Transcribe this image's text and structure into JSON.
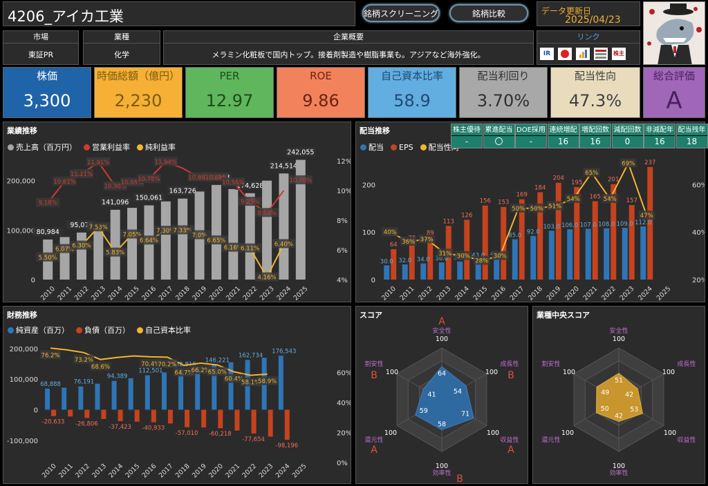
{
  "header": {
    "title": "4206_アイカ工業",
    "btn_screening": "銘柄スクリーニング",
    "btn_compare": "銘柄比較",
    "update_label": "データ更新日",
    "update_date": "2025/04/23"
  },
  "info": {
    "market_h": "市場",
    "market_v": "東証PR",
    "industry_h": "業種",
    "industry_v": "化学",
    "summary_h": "企業概要",
    "summary_v": "メラミン化粧板で国内トップ。接着剤製造や樹脂事業も。アジアなど海外強化。",
    "link_h": "リンク",
    "link_icons": [
      "ir-icon",
      "nikkei-icon",
      "chart-icon",
      "kabutan-icon",
      "shikiho-icon"
    ],
    "link_labels": [
      "IR",
      "",
      "",
      "",
      "株主"
    ]
  },
  "kpis": [
    {
      "label": "株価",
      "value": "3,300",
      "bg": "#1f63a8",
      "head": "#1f63a8",
      "fg": "#ffffff"
    },
    {
      "label": "時価総額（億円）",
      "value": "2,230",
      "bg": "#f5b035",
      "head": "#f5b035",
      "fg": "#7a5a10"
    },
    {
      "label": "PER",
      "value": "12.97",
      "bg": "#5fb65c",
      "head": "#5fb65c",
      "fg": "#1e4a1c"
    },
    {
      "label": "ROE",
      "value": "9.86",
      "bg": "#f2825c",
      "head": "#f2825c",
      "fg": "#6a2210"
    },
    {
      "label": "自己資本比率",
      "value": "58.9",
      "bg": "#62aee0",
      "head": "#62aee0",
      "fg": "#1e4a70"
    },
    {
      "label": "配当利回り",
      "value": "3.70%",
      "bg": "#a8a8a8",
      "head": "#a8a8a8",
      "fg": "#303030"
    },
    {
      "label": "配当性向",
      "value": "47.3%",
      "bg": "#e8dcbc",
      "head": "#e8dcbc",
      "fg": "#404040"
    },
    {
      "label": "総合評価",
      "value": "A",
      "bg": "#a066b8",
      "head": "#a066b8",
      "fg": "#4a2060"
    }
  ],
  "performance": {
    "title": "業績推移",
    "legend": [
      {
        "label": "売上高（百万円）",
        "color": "#a6a6a6"
      },
      {
        "label": "営業利益率",
        "color": "#d23a2e"
      },
      {
        "label": "純利益率",
        "color": "#f5b52e"
      }
    ]
  },
  "dividend": {
    "title": "配当推移",
    "legend": [
      {
        "label": "配当",
        "color": "#2e75b6"
      },
      {
        "label": "EPS",
        "color": "#c5431e"
      },
      {
        "label": "配当性向",
        "color": "#f5b52e"
      }
    ],
    "stats": [
      {
        "h": "株主優待",
        "v": "-"
      },
      {
        "h": "累進配当",
        "v": "〇"
      },
      {
        "h": "DOE採用",
        "v": "-"
      },
      {
        "h": "連続増配",
        "v": "16"
      },
      {
        "h": "増配回数",
        "v": "16"
      },
      {
        "h": "減配回数",
        "v": "0"
      },
      {
        "h": "非減配年",
        "v": "16"
      },
      {
        "h": "配当残年",
        "v": "18"
      }
    ]
  },
  "finance": {
    "title": "財務推移",
    "legend": [
      {
        "label": "純資産（百万）",
        "color": "#2e75b6"
      },
      {
        "label": "負債（百万）",
        "color": "#c5431e"
      },
      {
        "label": "自己資本比率",
        "color": "#f5b52e"
      }
    ]
  },
  "score": {
    "title": "スコア",
    "center_title": "業種中央スコア",
    "axes": [
      "安全性",
      "成長性",
      "収益性",
      "効率性",
      "還元性",
      "割安性"
    ],
    "max_label": "100",
    "values": [
      64,
      54,
      71,
      58,
      59,
      41
    ],
    "grades": [
      "A",
      "B",
      "A",
      "B",
      "A",
      "B"
    ],
    "median_values": [
      51,
      42,
      53,
      42,
      50,
      49
    ]
  },
  "chart_data": [
    {
      "type": "bar",
      "title": "業績推移",
      "categories": [
        "2010",
        "2011",
        "2012",
        "2013",
        "2014",
        "2015",
        "2016",
        "2017",
        "2018",
        "2019",
        "2020",
        "2021",
        "2022",
        "2023",
        "2024",
        "2025"
      ],
      "series": [
        {
          "name": "売上高（百万円）",
          "axis": "left",
          "values": [
            80984,
            86000,
            95071,
            101000,
            141096,
            145000,
            150061,
            158000,
            163726,
            178000,
            191363,
            183000,
            174628,
            200000,
            214514,
            242055
          ]
        },
        {
          "name": "営業利益率",
          "axis": "right",
          "labels": [
            "9.18%",
            "10.61%",
            "11.11%",
            "11.91%",
            "10.30%",
            "10.55%",
            "10.78%",
            "11.94%",
            "",
            "10.89%",
            "10.89%",
            "10.56%",
            "9.25%",
            "8.50%",
            "",
            "10.70%"
          ],
          "values": [
            9.18,
            10.61,
            11.11,
            11.91,
            10.3,
            10.55,
            10.78,
            11.94,
            11.5,
            10.89,
            10.89,
            10.56,
            9.25,
            8.5,
            10.0,
            10.7
          ]
        },
        {
          "name": "純利益率",
          "axis": "right",
          "labels": [
            "5.50%",
            "6.07%",
            "6.30%",
            "7.53%",
            "5.83%",
            "7.05%",
            "6.64%",
            "7.30%",
            "7.33%",
            "7.0%",
            "6.65%",
            "6.16%",
            "6.11%",
            "4.16%",
            "6.40%",
            ""
          ],
          "values": [
            5.5,
            6.07,
            6.3,
            7.53,
            5.83,
            7.05,
            6.64,
            7.3,
            7.33,
            7.0,
            6.65,
            6.16,
            6.11,
            4.16,
            6.4,
            6.8
          ]
        }
      ],
      "bar_labels": [
        "80,984",
        "",
        "95,071",
        "",
        "141,096",
        "",
        "150,061",
        "",
        "163,726",
        "",
        "191,363",
        "",
        "174,628",
        "",
        "214,514",
        "242,055"
      ],
      "ylim_left": [
        0,
        240000
      ],
      "yticks_left": [
        "0",
        "100,000",
        "200,000"
      ],
      "ylim_right": [
        4,
        12
      ],
      "yticks_right": [
        "4%",
        "6%",
        "8%",
        "10%",
        "12%"
      ]
    },
    {
      "type": "bar",
      "title": "配当推移",
      "categories": [
        "2010",
        "2011",
        "2012",
        "2013",
        "2014",
        "2015",
        "2016",
        "2017",
        "2018",
        "2019",
        "2020",
        "2021",
        "2022",
        "2023",
        "2024",
        "2025"
      ],
      "series": [
        {
          "name": "配当",
          "values": [
            30.0,
            32.0,
            34.0,
            36.0,
            38.0,
            43.0,
            46.0,
            85.0,
            92.0,
            103.0,
            106.0,
            107.0,
            108.0,
            109.0,
            112.0,
            0
          ]
        },
        {
          "name": "EPS",
          "values": [
            64,
            78,
            89,
            113,
            126,
            156,
            153,
            169,
            184,
            204,
            195,
            165,
            201,
            157,
            237,
            0
          ]
        },
        {
          "name": "配当性向",
          "labels": [
            "40%",
            "36%",
            "37%",
            "31%",
            "30%",
            "28%",
            "30%",
            "50%",
            "50%",
            "51%",
            "54%",
            "65%",
            "54%",
            "69%",
            "47%",
            ""
          ],
          "values": [
            40,
            36,
            37,
            31,
            30,
            28,
            30,
            50,
            50,
            51,
            54,
            65,
            54,
            69,
            47,
            0
          ]
        }
      ],
      "ylim_left": [
        0,
        250
      ],
      "yticks_left": [
        "0",
        "100",
        "200"
      ],
      "ylim_right": [
        20,
        70
      ],
      "yticks_right": [
        "20%",
        "40%",
        "60%"
      ]
    },
    {
      "type": "bar",
      "title": "財務推移",
      "categories": [
        "2010",
        "2011",
        "2012",
        "2013",
        "2014",
        "2015",
        "2016",
        "2017",
        "2018",
        "2019",
        "2020",
        "2021",
        "2022",
        "2023",
        "2024",
        "2025"
      ],
      "series": [
        {
          "name": "純資産（百万）",
          "labels": [
            "68,888",
            "",
            "76,191",
            "",
            "94,389",
            "",
            "112,501",
            "",
            "132,816",
            "",
            "146,221",
            "",
            "162,734",
            "",
            "176,543",
            ""
          ],
          "values": [
            68888,
            72000,
            76191,
            85000,
            94389,
            103000,
            112501,
            122000,
            132816,
            140000,
            146221,
            155000,
            162734,
            170000,
            176543,
            0
          ]
        },
        {
          "name": "負債（百万）",
          "labels": [
            "-20,633",
            "",
            "-26,806",
            "",
            "-37,423",
            "",
            "-40,933",
            "",
            "-57,010",
            "",
            "-60,218",
            "",
            "-77,654",
            "",
            "-98,196",
            ""
          ],
          "values": [
            -20633,
            -22000,
            -26806,
            -30000,
            -37423,
            -39000,
            -40933,
            -45000,
            -57010,
            -58000,
            -60218,
            -68000,
            -77654,
            -88000,
            -98196,
            0
          ]
        },
        {
          "name": "自己資本比率",
          "labels": [
            "76.2%",
            "",
            "73.2%",
            "68.6%",
            "",
            "",
            "70.4%",
            "70.2%",
            "64.7%",
            "66.2%",
            "65.0%",
            "60.4%",
            "58.1%",
            "58.9%",
            "",
            ""
          ],
          "values": [
            76.2,
            75.0,
            73.2,
            68.6,
            70.0,
            71.0,
            70.4,
            70.2,
            64.7,
            66.2,
            65.0,
            60.4,
            58.1,
            58.9,
            0,
            0
          ]
        }
      ],
      "ylim_left": [
        -150000,
        220000
      ],
      "yticks_left": [
        "-100,000",
        "0",
        "100,000",
        "200,000"
      ],
      "ylim_right": [
        0,
        80
      ],
      "yticks_right": [
        "0%",
        "20%",
        "40%",
        "60%"
      ]
    }
  ]
}
